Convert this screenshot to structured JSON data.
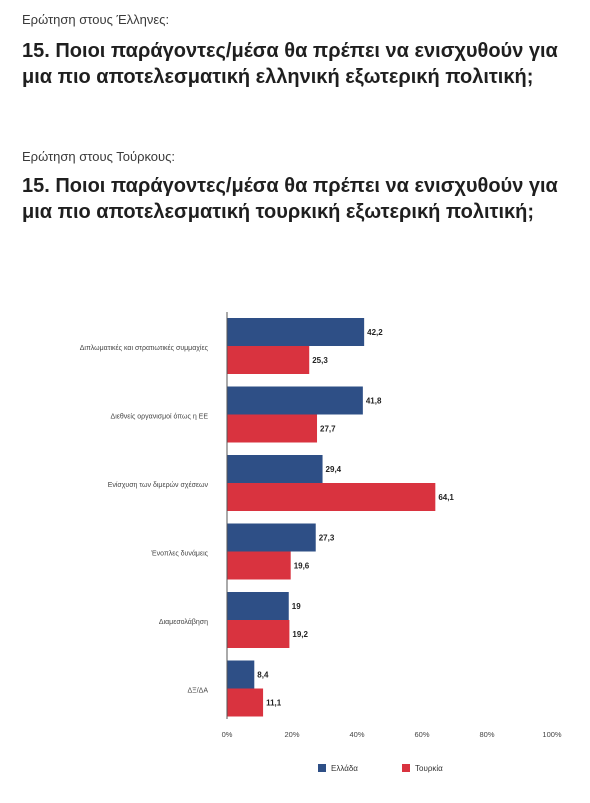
{
  "questions": [
    {
      "intro": "Ερώτηση στους Έλληνες:",
      "title": "15. Ποιοι παράγοντες/μέσα θα πρέπει να ενισχυθούν για μια πιο αποτελεσματική ελληνική εξωτερική πολιτική;"
    },
    {
      "intro": "Ερώτηση στους Τούρκους:",
      "title": "15. Ποιοι παράγοντες/μέσα θα πρέπει να ενισχυθούν για μια πιο αποτελεσματική τουρκική εξωτερική πολιτική;"
    }
  ],
  "colors": {
    "greece": "#2e4f86",
    "turkey": "#d9333f"
  },
  "chart_data": {
    "type": "bar",
    "orientation": "horizontal",
    "categories": [
      "Διπλωματικές και στρατιωτικές συμμαχίες",
      "Διεθνείς οργανισμοί όπως η ΕΕ",
      "Ενίσχυση των διμερών σχέσεων",
      "Ένοπλες δυνάμεις",
      "Διαμεσολάβηση",
      "ΔΞ/ΔΑ"
    ],
    "series": [
      {
        "name": "Ελλάδα",
        "values": [
          42.2,
          41.8,
          29.4,
          27.3,
          19,
          8.4
        ],
        "labels": [
          "42,2",
          "41,8",
          "29,4",
          "27,3",
          "19",
          "8,4"
        ]
      },
      {
        "name": "Τουρκία",
        "values": [
          25.3,
          27.7,
          64.1,
          19.6,
          19.2,
          11.1
        ],
        "labels": [
          "25,3",
          "27,7",
          "64,1",
          "19,6",
          "19,2",
          "11,1"
        ]
      }
    ],
    "xlim": [
      0,
      100
    ],
    "xticks": [
      "0%",
      "20%",
      "40%",
      "60%",
      "80%",
      "100%"
    ],
    "grid": false,
    "legend_position": "bottom"
  }
}
